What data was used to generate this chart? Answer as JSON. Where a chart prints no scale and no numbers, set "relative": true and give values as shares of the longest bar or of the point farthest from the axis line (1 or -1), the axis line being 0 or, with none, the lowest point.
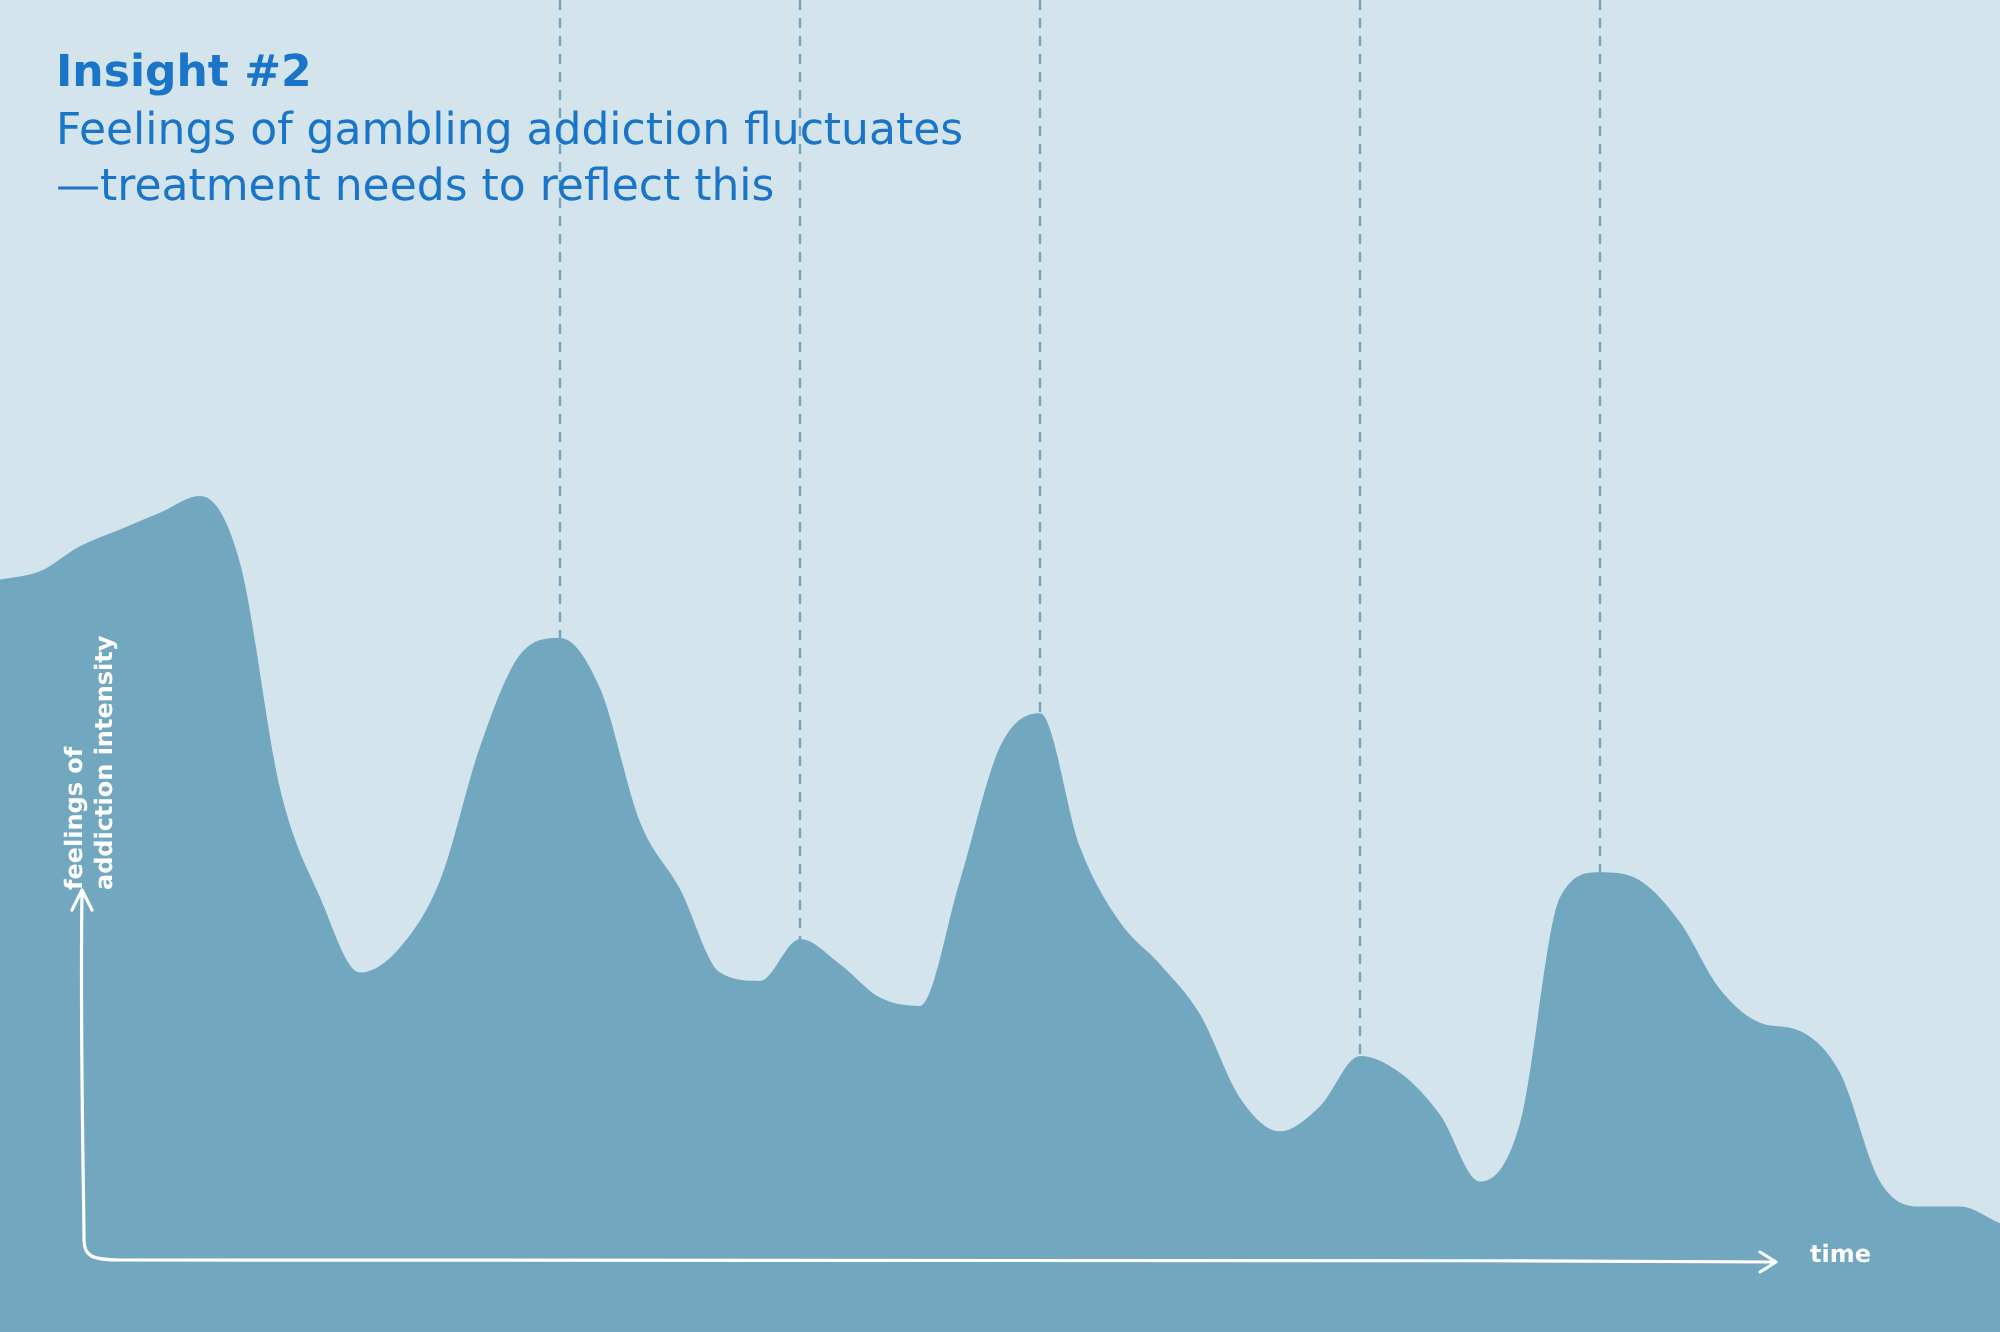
{
  "chart_data": {
    "type": "area",
    "title": "Insight #2",
    "subtitle": "Feelings of gambling addiction fluctuates\n—treatment needs to reflect this",
    "xlabel": "time",
    "ylabel": "feelings of addiction intensity",
    "relative": true,
    "categories": [
      null,
      null,
      null,
      null,
      null,
      null,
      null,
      null,
      null,
      null,
      null,
      null,
      null,
      null,
      null,
      null,
      null,
      null,
      null,
      null,
      null,
      null,
      null,
      null,
      null,
      null,
      null,
      null,
      null,
      null,
      null,
      null,
      null,
      null,
      null,
      null,
      null,
      null,
      null,
      null,
      null,
      null,
      null,
      null,
      null,
      null,
      null,
      null,
      null,
      null,
      null
    ],
    "series": [
      {
        "color": "#72a7c0",
        "values": [
          0.9,
          0.91,
          0.94,
          0.96,
          0.98,
          1,
          0.92,
          0.65,
          0.52,
          0.43,
          0.46,
          0.54,
          0.7,
          0.81,
          0.83,
          0.77,
          0.61,
          0.53,
          0.43,
          0.42,
          0.47,
          0.44,
          0.4,
          0.39,
          0.54,
          0.7,
          0.74,
          0.58,
          0.49,
          0.44,
          0.38,
          0.28,
          0.24,
          0.27,
          0.33,
          0.31,
          0.26,
          0.18,
          0.25,
          0.52,
          0.55,
          0.54,
          0.49,
          0.41,
          0.37,
          0.36,
          0.31,
          0.18,
          0.15,
          0.15,
          0.13
        ]
      }
    ],
    "grid": "x",
    "line_style": "dashed",
    "legend": false
  }
}
